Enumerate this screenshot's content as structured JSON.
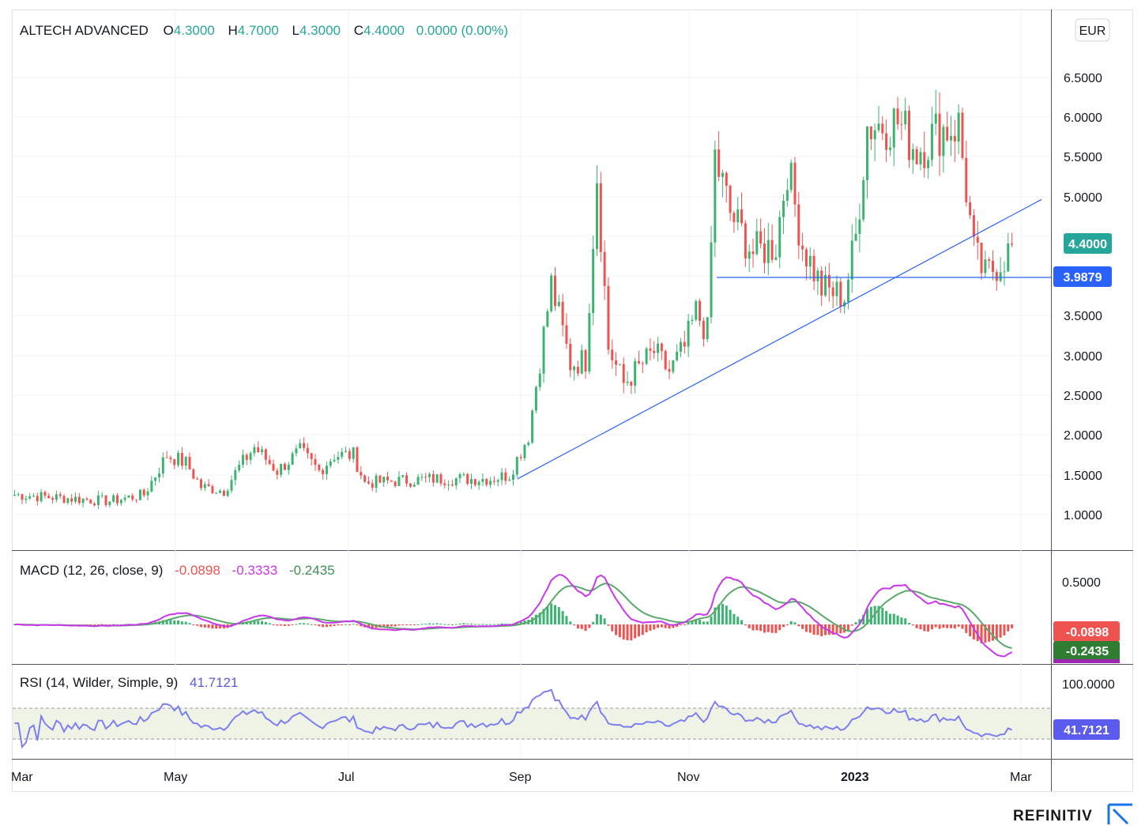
{
  "header": {
    "symbol": "ALTECH ADVANCED",
    "open_label": "O",
    "open": "4.3000",
    "high_label": "H",
    "high": "4.7000",
    "low_label": "L",
    "low": "4.3000",
    "close_label": "C",
    "close": "4.4000",
    "change": "0.0000 (0.00%)",
    "currency": "EUR"
  },
  "colors": {
    "up": "#26a69a",
    "up_bar": "#3cb371",
    "down": "#ef5350",
    "trend": "#2962ff",
    "macd": "#c837ea",
    "signal": "#5aa86a",
    "rsi": "#7e7ef0"
  },
  "price_axis": [
    "6.5000",
    "6.0000",
    "5.5000",
    "5.0000",
    "3.5000",
    "3.0000",
    "2.5000",
    "2.0000",
    "1.5000",
    "1.0000"
  ],
  "price_tags": {
    "last": "4.4000",
    "horizontal_line": "3.9879"
  },
  "macd": {
    "label": "MACD (12, 26, close, 9)",
    "hist": "-0.0898",
    "macd": "-0.3333",
    "signal": "-0.2435",
    "axis": [
      "0.5000"
    ],
    "tag_hist": "-0.0898",
    "tag_signal": "-0.2435"
  },
  "rsi": {
    "label": "RSI (14, Wilder, Simple, 9)",
    "value": "41.7121",
    "axis": [
      "100.0000"
    ],
    "tag": "41.7121"
  },
  "time_axis": [
    "Mar",
    "May",
    "Jul",
    "Sep",
    "Nov",
    "2023",
    "Mar"
  ],
  "brand": "REFINITIV",
  "chart_data": {
    "type": "candlestick",
    "title": "ALTECH ADVANCED",
    "currency": "EUR",
    "x_range": [
      "2022-03",
      "2023-03"
    ],
    "ylim": [
      0.6,
      6.9
    ],
    "grid": true,
    "price_keypoints": [
      {
        "t": 0,
        "close": 1.25
      },
      {
        "t": 25,
        "close": 1.17
      },
      {
        "t": 34,
        "close": 1.25
      },
      {
        "t": 40,
        "close": 1.75
      },
      {
        "t": 45,
        "close": 1.65
      },
      {
        "t": 49,
        "close": 1.35
      },
      {
        "t": 55,
        "close": 1.3
      },
      {
        "t": 59,
        "close": 1.6
      },
      {
        "t": 63,
        "close": 1.85
      },
      {
        "t": 69,
        "close": 1.55
      },
      {
        "t": 75,
        "close": 1.8
      },
      {
        "t": 80,
        "close": 1.55
      },
      {
        "t": 84,
        "close": 1.75
      },
      {
        "t": 89,
        "close": 1.75
      },
      {
        "t": 92,
        "close": 1.4
      },
      {
        "t": 110,
        "close": 1.45
      },
      {
        "t": 125,
        "close": 1.45
      },
      {
        "t": 130,
        "close": 1.5
      },
      {
        "t": 135,
        "close": 2.0
      },
      {
        "t": 141,
        "close": 3.9
      },
      {
        "t": 146,
        "close": 2.9
      },
      {
        "t": 150,
        "close": 2.95
      },
      {
        "t": 153,
        "close": 5.3
      },
      {
        "t": 156,
        "close": 3.1
      },
      {
        "t": 160,
        "close": 2.65
      },
      {
        "t": 168,
        "close": 3.05
      },
      {
        "t": 172,
        "close": 2.8
      },
      {
        "t": 176,
        "close": 3.1
      },
      {
        "t": 179,
        "close": 3.55
      },
      {
        "t": 182,
        "close": 3.3
      },
      {
        "t": 184,
        "close": 5.5
      },
      {
        "t": 188,
        "close": 4.8
      },
      {
        "t": 194,
        "close": 4.3
      },
      {
        "t": 200,
        "close": 4.4
      },
      {
        "t": 203,
        "close": 5.4
      },
      {
        "t": 207,
        "close": 4.4
      },
      {
        "t": 212,
        "close": 3.85
      },
      {
        "t": 218,
        "close": 3.75
      },
      {
        "t": 221,
        "close": 4.5
      },
      {
        "t": 224,
        "close": 5.9
      },
      {
        "t": 232,
        "close": 5.95
      },
      {
        "t": 237,
        "close": 5.6
      },
      {
        "t": 243,
        "close": 5.85
      },
      {
        "t": 248,
        "close": 5.9
      },
      {
        "t": 252,
        "close": 4.3
      },
      {
        "t": 255,
        "close": 4.0
      },
      {
        "t": 261,
        "close": 4.3
      },
      {
        "t": 262,
        "close": 4.4
      }
    ],
    "horizontal_line": 3.9879,
    "trend_line": [
      {
        "date": "2022-09",
        "y": 1.45
      },
      {
        "date": "2023-03",
        "y": 4.97
      }
    ],
    "last_close": 4.4,
    "macd_series": {
      "params": "12, 26, close, 9",
      "hist": -0.0898,
      "macd": -0.3333,
      "signal": -0.2435
    },
    "rsi_series": {
      "params": "14, Wilder, Simple, 9",
      "value": 41.7121,
      "bands": [
        30,
        70
      ]
    }
  }
}
